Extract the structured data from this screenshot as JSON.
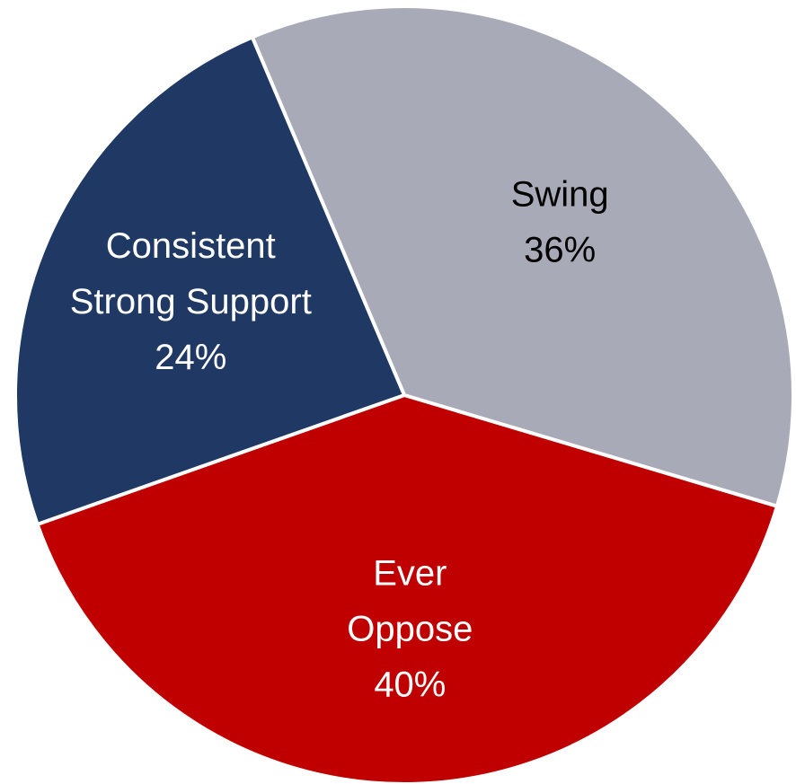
{
  "chart_data": {
    "type": "pie",
    "start_angle_deg": 337,
    "direction": "clockwise",
    "slices": [
      {
        "category": "Swing",
        "value": 36,
        "label_lines": [
          "Swing",
          "36%"
        ],
        "color": "#A8AAB8",
        "label_color": "#000000"
      },
      {
        "category": "Ever Oppose",
        "value": 40,
        "label_lines": [
          "Ever",
          "Oppose",
          "40%"
        ],
        "color": "#C00000",
        "label_color": "#FFFFFF"
      },
      {
        "category": "Consistent Strong Support",
        "value": 24,
        "label_lines": [
          "Consistent",
          "Strong Support",
          "24%"
        ],
        "color": "#1F3864",
        "label_color": "#FFFFFF"
      }
    ]
  }
}
